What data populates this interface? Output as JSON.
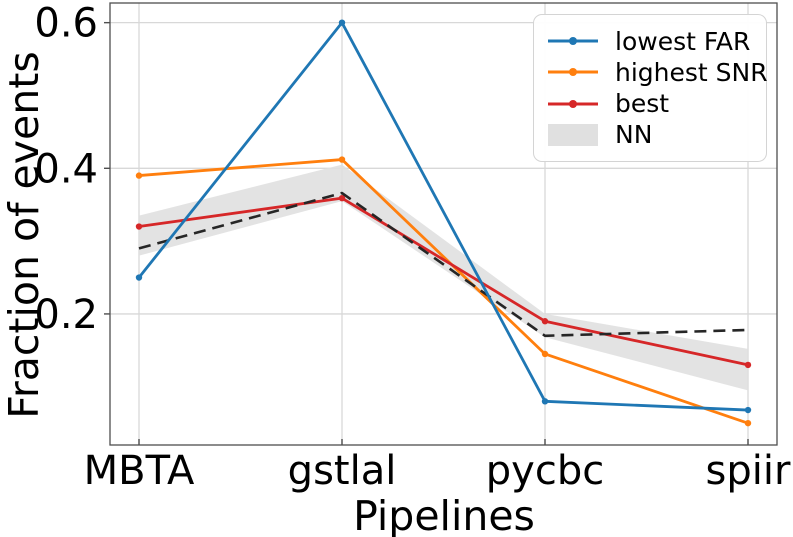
{
  "chart_data": {
    "type": "line",
    "title": "",
    "xlabel": "Pipelines",
    "ylabel": "Fraction of events",
    "categories": [
      "MBTA",
      "gstlal",
      "pycbc",
      "spiir"
    ],
    "series": [
      {
        "name": "lowest FAR",
        "color": "#1f77b4",
        "line": "solid",
        "marker": true,
        "values": [
          0.25,
          0.6,
          0.08,
          0.068
        ]
      },
      {
        "name": "highest SNR",
        "color": "#ff7f0e",
        "line": "solid",
        "marker": true,
        "values": [
          0.39,
          0.412,
          0.145,
          0.05
        ]
      },
      {
        "name": "best",
        "color": "#d62728",
        "line": "solid",
        "marker": true,
        "values": [
          0.32,
          0.359,
          0.19,
          0.13
        ]
      },
      {
        "name": "NN",
        "color": "#262626",
        "line": "dashed",
        "marker": false,
        "values": [
          0.29,
          0.366,
          0.17,
          0.178
        ]
      }
    ],
    "band": {
      "name": "NN",
      "color": "#e0e0e0",
      "upper": [
        0.335,
        0.405,
        0.2,
        0.152
      ],
      "lower": [
        0.28,
        0.355,
        0.168,
        0.095
      ]
    },
    "yticks": [
      0.2,
      0.4,
      0.6
    ],
    "ytick_labels": [
      "0.2",
      "0.4",
      "0.6"
    ],
    "ylim": [
      0.02,
      0.627
    ],
    "grid": true,
    "legend": {
      "position": "upper right",
      "entries": [
        {
          "label": "lowest FAR",
          "swatch": "line",
          "color": "#1f77b4"
        },
        {
          "label": "highest SNR",
          "swatch": "line",
          "color": "#ff7f0e"
        },
        {
          "label": "best",
          "swatch": "line",
          "color": "#d62728"
        },
        {
          "label": "NN",
          "swatch": "patch",
          "color": "#e0e0e0"
        }
      ]
    },
    "style": {
      "grid_color": "#d8d8d8",
      "spine_color": "#4f4f4f",
      "tick_color": "#4f4f4f",
      "background": "#ffffff"
    }
  }
}
